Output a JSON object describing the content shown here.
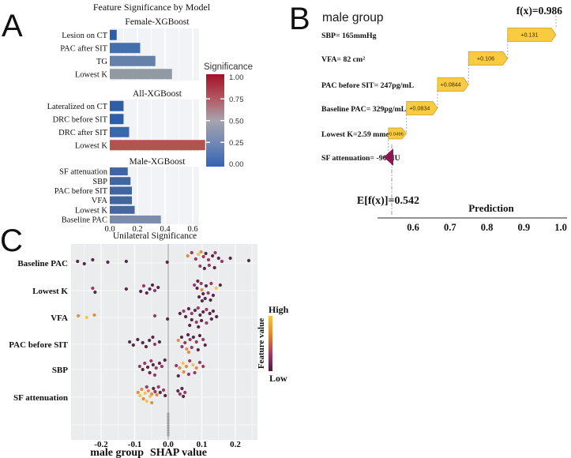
{
  "figure": {
    "letters": {
      "a": "A",
      "b": "B",
      "c": "C"
    }
  },
  "chart_data": [
    {
      "type": "bar",
      "title": "Feature Significance by Model",
      "xlabel": "Unilateral Significance",
      "x_ticks": [
        "0.0",
        "0.2",
        "0.4",
        "0.6"
      ],
      "xlim": [
        0,
        0.78
      ],
      "legend": {
        "title": "Significance",
        "ticks": [
          "1.00",
          "0.75",
          "0.50",
          "0.25",
          "0.00"
        ],
        "colors_top_to_bottom": [
          "#a31126",
          "#b25560",
          "#a7a3ae",
          "#6f87b4",
          "#3365b4"
        ]
      },
      "facets": [
        {
          "title": "Female-XGBoost",
          "rows": [
            {
              "label": "Lesion on CT",
              "value": 0.05,
              "color": "#2e5ea7"
            },
            {
              "label": "PAC after SIT",
              "value": 0.22,
              "color": "#4370ad"
            },
            {
              "label": "TG",
              "value": 0.33,
              "color": "#6580a9"
            },
            {
              "label": "Lowest K",
              "value": 0.45,
              "color": "#9199a3"
            }
          ]
        },
        {
          "title": "All-XGBoost",
          "rows": [
            {
              "label": "Lateralized on CT",
              "value": 0.1,
              "color": "#2e5ea7"
            },
            {
              "label": "DRC before SIT",
              "value": 0.1,
              "color": "#2e5ea7"
            },
            {
              "label": "DRC after SIT",
              "value": 0.14,
              "color": "#3a68ab"
            },
            {
              "label": "Lowest K",
              "value": 0.69,
              "color": "#b4524f"
            }
          ]
        },
        {
          "title": "Male-XGBoost",
          "rows": [
            {
              "label": "SF attenuation",
              "value": 0.13,
              "color": "#41659f"
            },
            {
              "label": "SBP",
              "value": 0.15,
              "color": "#41659f"
            },
            {
              "label": "PAC before SIT",
              "value": 0.16,
              "color": "#41659f"
            },
            {
              "label": "VFA",
              "value": 0.16,
              "color": "#41659f"
            },
            {
              "label": "Lowest K",
              "value": 0.18,
              "color": "#46689f"
            },
            {
              "label": "Baseline PAC",
              "value": 0.37,
              "color": "#7d8cab"
            }
          ]
        }
      ]
    },
    {
      "type": "waterfall",
      "title": "male group",
      "fx_label": "f(x)=0.986",
      "fx_value": 0.987,
      "base_label": "E[f(x)]=0.542",
      "base_value": 0.542,
      "xlabel": "Prediction",
      "x_ticks": [
        "0.6",
        "0.7",
        "0.8",
        "0.9",
        "1.0"
      ],
      "arrow_color": "#f9cb40",
      "negative_color": "#8e1653",
      "rows": [
        {
          "label": "SBP= 165mmHg",
          "value_label": "+0.131",
          "from": 0.856,
          "to": 0.987,
          "negative": false
        },
        {
          "label": "VFA= 82  cm²",
          "value_label": "+0.106",
          "from": 0.75,
          "to": 0.856,
          "negative": false
        },
        {
          "label": "PAC before SIT= 247pg/mL",
          "value_label": "+0.0844",
          "from": 0.666,
          "to": 0.75,
          "negative": false
        },
        {
          "label": "Baseline PAC= 329pg/mL",
          "value_label": "+0.0834",
          "from": 0.582,
          "to": 0.666,
          "negative": false
        },
        {
          "label": "Lowest K=2.59 mmol/L",
          "value_label": "+0.0496",
          "from": 0.533,
          "to": 0.582,
          "negative": false
        },
        {
          "label": "SF attenuation= -96 HU",
          "value_label": "",
          "from": 0.542,
          "to": 0.533,
          "negative": true
        }
      ]
    },
    {
      "type": "scatter",
      "subtype": "beeswarm",
      "xlabel_group": "male group",
      "xlabel": "SHAP value",
      "x_ticks": [
        "-0.2",
        "-0.1",
        "0.0",
        "0.1",
        "0.2"
      ],
      "xlim": [
        -0.29,
        0.27
      ],
      "legend": {
        "title": "Feature value",
        "high": "High",
        "low": "Low",
        "gradient_top_to_bottom": [
          "#f5c73f",
          "#e0832f",
          "#a23a62",
          "#4a1a40"
        ]
      },
      "point_colors": {
        "y": "#f3c24b",
        "o": "#e08a3c",
        "r": "#93305c",
        "d": "#511e3e",
        "g": "#9a9a9a"
      },
      "rows": [
        {
          "label": "Baseline PAC",
          "points": [
            [
              -0.27,
              -2,
              "d"
            ],
            [
              -0.25,
              1,
              "d"
            ],
            [
              -0.225,
              -4,
              "d"
            ],
            [
              -0.18,
              -1,
              "d"
            ],
            [
              -0.125,
              -2,
              "d"
            ],
            [
              -0.003,
              -1,
              "d"
            ],
            [
              0.058,
              -9,
              "o"
            ],
            [
              0.07,
              -13,
              "r"
            ],
            [
              0.082,
              -5,
              "r"
            ],
            [
              0.09,
              -11,
              "y"
            ],
            [
              0.098,
              -14,
              "o"
            ],
            [
              0.105,
              -8,
              "r"
            ],
            [
              0.112,
              -12,
              "d"
            ],
            [
              0.12,
              -4,
              "r"
            ],
            [
              0.132,
              -9,
              "d"
            ],
            [
              0.14,
              -13,
              "r"
            ],
            [
              0.15,
              -6,
              "d"
            ],
            [
              0.095,
              4,
              "r"
            ],
            [
              0.108,
              7,
              "d"
            ],
            [
              0.122,
              3,
              "r"
            ],
            [
              0.138,
              6,
              "d"
            ],
            [
              0.16,
              -2,
              "r"
            ],
            [
              0.185,
              -6,
              "d"
            ],
            [
              0.24,
              -3,
              "d"
            ]
          ]
        },
        {
          "label": "Lowest K",
          "points": [
            [
              -0.225,
              -3,
              "r"
            ],
            [
              -0.218,
              2,
              "d"
            ],
            [
              -0.125,
              -2,
              "d"
            ],
            [
              -0.082,
              1,
              "d"
            ],
            [
              -0.073,
              -6,
              "r"
            ],
            [
              -0.064,
              3,
              "d"
            ],
            [
              -0.055,
              -2,
              "d"
            ],
            [
              -0.047,
              -7,
              "d"
            ],
            [
              -0.04,
              0,
              "r"
            ],
            [
              -0.03,
              -4,
              "d"
            ],
            [
              0.078,
              -7,
              "r"
            ],
            [
              0.088,
              -12,
              "d"
            ],
            [
              0.098,
              -9,
              "r"
            ],
            [
              0.086,
              -3,
              "d"
            ],
            [
              0.1,
              -1,
              "o"
            ],
            [
              0.113,
              -6,
              "d"
            ],
            [
              0.128,
              -9,
              "r"
            ],
            [
              0.143,
              -3,
              "y"
            ],
            [
              0.155,
              -7,
              "d"
            ],
            [
              0.104,
              4,
              "d"
            ],
            [
              0.119,
              3,
              "r"
            ],
            [
              0.134,
              6,
              "d"
            ],
            [
              0.092,
              8,
              "d"
            ],
            [
              0.11,
              10,
              "d"
            ],
            [
              0.126,
              12,
              "d"
            ],
            [
              0.101,
              13,
              "d"
            ]
          ]
        },
        {
          "label": "VFA",
          "points": [
            [
              -0.268,
              -2,
              "o"
            ],
            [
              -0.243,
              0,
              "y"
            ],
            [
              -0.22,
              -3,
              "o"
            ],
            [
              -0.04,
              -2,
              "r"
            ],
            [
              -0.002,
              2,
              "d"
            ],
            [
              0.035,
              -5,
              "d"
            ],
            [
              0.046,
              -8,
              "r"
            ],
            [
              0.052,
              -1,
              "d"
            ],
            [
              0.061,
              -11,
              "d"
            ],
            [
              0.07,
              -5,
              "r"
            ],
            [
              0.08,
              -9,
              "d"
            ],
            [
              0.089,
              -12,
              "r"
            ],
            [
              0.095,
              -3,
              "d"
            ],
            [
              0.104,
              -7,
              "d"
            ],
            [
              0.114,
              -10,
              "r"
            ],
            [
              0.124,
              -5,
              "d"
            ],
            [
              0.134,
              -8,
              "d"
            ],
            [
              0.07,
              3,
              "d"
            ],
            [
              0.084,
              6,
              "r"
            ],
            [
              0.099,
              4,
              "d"
            ],
            [
              0.114,
              7,
              "r"
            ],
            [
              0.129,
              2,
              "d"
            ],
            [
              0.144,
              -1,
              "d"
            ],
            [
              0.064,
              10,
              "d"
            ],
            [
              0.09,
              12,
              "d"
            ]
          ]
        },
        {
          "label": "PAC before SIT",
          "points": [
            [
              -0.115,
              -3,
              "d"
            ],
            [
              -0.104,
              1,
              "d"
            ],
            [
              -0.091,
              -6,
              "d"
            ],
            [
              -0.076,
              -2,
              "d"
            ],
            [
              -0.066,
              3,
              "d"
            ],
            [
              -0.056,
              -5,
              "d"
            ],
            [
              -0.046,
              -9,
              "d"
            ],
            [
              -0.04,
              0,
              "r"
            ],
            [
              -0.026,
              -3,
              "d"
            ],
            [
              0.03,
              -5,
              "o"
            ],
            [
              0.04,
              -9,
              "d"
            ],
            [
              0.05,
              -2,
              "r"
            ],
            [
              0.059,
              -12,
              "d"
            ],
            [
              0.065,
              -6,
              "r"
            ],
            [
              0.075,
              -9,
              "d"
            ],
            [
              0.084,
              -3,
              "r"
            ],
            [
              0.094,
              -11,
              "d"
            ],
            [
              0.104,
              -6,
              "r"
            ],
            [
              0.041,
              3,
              "r"
            ],
            [
              0.055,
              6,
              "o"
            ],
            [
              0.07,
              4,
              "r"
            ],
            [
              0.089,
              7,
              "d"
            ],
            [
              0.061,
              10,
              "o"
            ],
            [
              0.11,
              1,
              "d"
            ]
          ]
        },
        {
          "label": "SBP",
          "points": [
            [
              -0.085,
              -4,
              "r"
            ],
            [
              -0.076,
              0,
              "d"
            ],
            [
              -0.07,
              -8,
              "r"
            ],
            [
              -0.061,
              -3,
              "d"
            ],
            [
              -0.051,
              -11,
              "r"
            ],
            [
              -0.045,
              -6,
              "d"
            ],
            [
              -0.036,
              -2,
              "r"
            ],
            [
              -0.026,
              -8,
              "d"
            ],
            [
              -0.019,
              -4,
              "r"
            ],
            [
              -0.055,
              4,
              "d"
            ],
            [
              -0.04,
              7,
              "r"
            ],
            [
              -0.01,
              -12,
              "d"
            ],
            [
              0.024,
              -5,
              "r"
            ],
            [
              0.034,
              -2,
              "o"
            ],
            [
              0.044,
              -8,
              "y"
            ],
            [
              0.054,
              -4,
              "o"
            ],
            [
              0.064,
              -11,
              "r"
            ],
            [
              0.074,
              -6,
              "y"
            ],
            [
              0.084,
              -2,
              "o"
            ],
            [
              0.094,
              -9,
              "r"
            ],
            [
              0.104,
              -4,
              "r"
            ],
            [
              0.046,
              3,
              "o"
            ],
            [
              0.061,
              6,
              "r"
            ],
            [
              0.079,
              4,
              "r"
            ],
            [
              0.03,
              8,
              "d"
            ]
          ]
        },
        {
          "label": "SF attenuation",
          "points": [
            [
              -0.09,
              -6,
              "o"
            ],
            [
              -0.084,
              -2,
              "y"
            ],
            [
              -0.079,
              -10,
              "o"
            ],
            [
              -0.074,
              2,
              "o"
            ],
            [
              -0.069,
              -5,
              "y"
            ],
            [
              -0.064,
              -13,
              "r"
            ],
            [
              -0.059,
              -8,
              "o"
            ],
            [
              -0.054,
              -1,
              "y"
            ],
            [
              -0.049,
              -4,
              "o"
            ],
            [
              -0.044,
              -11,
              "d"
            ],
            [
              -0.039,
              -7,
              "r"
            ],
            [
              -0.034,
              -3,
              "o"
            ],
            [
              -0.064,
              5,
              "y"
            ],
            [
              -0.049,
              7,
              "o"
            ],
            [
              -0.029,
              -13,
              "r"
            ],
            [
              -0.024,
              -6,
              "d"
            ],
            [
              -0.014,
              -9,
              "r"
            ],
            [
              -0.009,
              -2,
              "d"
            ],
            [
              0.029,
              -8,
              "d"
            ],
            [
              0.035,
              -4,
              "r"
            ],
            [
              0.041,
              -11,
              "d"
            ],
            [
              0.05,
              -6,
              "r"
            ],
            [
              0.045,
              -1,
              "d"
            ]
          ]
        },
        {
          "label": "",
          "points": [
            [
              0,
              -14,
              "g"
            ],
            [
              0,
              -11,
              "g"
            ],
            [
              0,
              -8,
              "g"
            ],
            [
              0,
              -5,
              "g"
            ],
            [
              0,
              -2,
              "g"
            ],
            [
              0,
              1,
              "g"
            ],
            [
              0,
              4,
              "g"
            ],
            [
              0,
              7,
              "g"
            ],
            [
              0,
              10,
              "g"
            ],
            [
              0,
              13,
              "g"
            ]
          ]
        }
      ]
    }
  ]
}
